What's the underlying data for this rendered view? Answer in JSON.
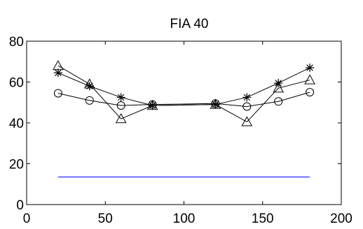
{
  "chart_data": {
    "type": "line",
    "title": "FIA 40",
    "xlabel": "",
    "ylabel": "",
    "xlim": [
      0,
      200
    ],
    "ylim": [
      0,
      80
    ],
    "x_ticks": [
      0,
      50,
      100,
      150,
      200
    ],
    "y_ticks": [
      0,
      20,
      40,
      60,
      80
    ],
    "grid": false,
    "series": [
      {
        "marker": "circle",
        "color": "#000000",
        "points": [
          [
            20,
            54.5
          ],
          [
            40,
            51
          ],
          [
            60,
            48.5
          ],
          [
            80,
            49
          ],
          [
            120,
            49.5
          ],
          [
            140,
            48
          ],
          [
            160,
            50.5
          ],
          [
            180,
            55
          ]
        ]
      },
      {
        "marker": "star",
        "color": "#000000",
        "points": [
          [
            20,
            64.5
          ],
          [
            40,
            58
          ],
          [
            60,
            52.5
          ],
          [
            80,
            48.5
          ],
          [
            120,
            49
          ],
          [
            140,
            52.5
          ],
          [
            160,
            59.5
          ],
          [
            180,
            67
          ]
        ]
      },
      {
        "marker": "triangle",
        "color": "#000000",
        "points": [
          [
            20,
            68
          ],
          [
            40,
            59
          ],
          [
            60,
            42
          ],
          [
            80,
            48.5
          ],
          [
            120,
            49
          ],
          [
            140,
            40.5
          ],
          [
            160,
            57
          ],
          [
            180,
            61
          ]
        ]
      },
      {
        "marker": "none",
        "color": "#0000ff",
        "points": [
          [
            20,
            13.5
          ],
          [
            180,
            13.5
          ]
        ]
      }
    ]
  }
}
